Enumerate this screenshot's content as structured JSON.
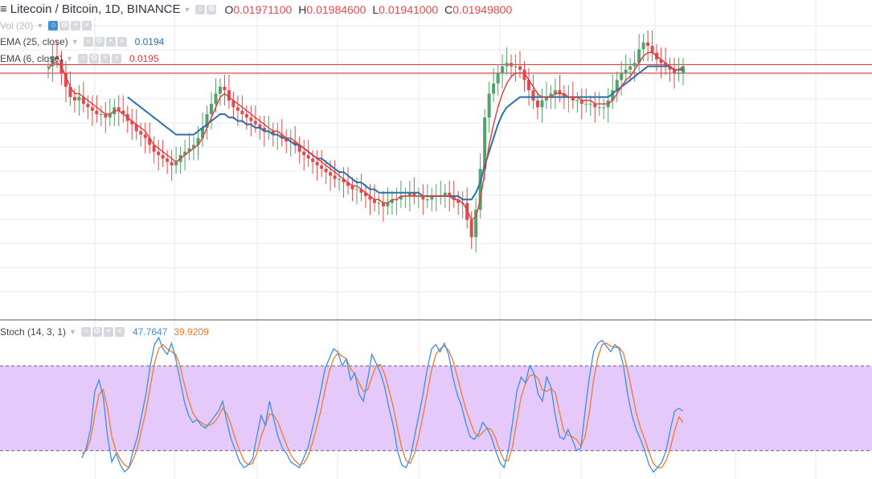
{
  "header": {
    "symbol_label": "Litecoin / Bitcoin, 1D, BINANCE",
    "ohlc": [
      {
        "key": "O",
        "value": "0.01971100"
      },
      {
        "key": "H",
        "value": "0.01984600"
      },
      {
        "key": "L",
        "value": "0.01941000"
      },
      {
        "key": "C",
        "value": "0.01949800"
      }
    ]
  },
  "indicators": {
    "vol": {
      "label": "Vol (20)"
    },
    "ema25": {
      "label": "EMA (25, close)",
      "value": "0.0194",
      "color": "#2f6ea8"
    },
    "ema6": {
      "label": "EMA (6, close)",
      "value": "0.0195",
      "color": "#e03b3b"
    }
  },
  "stoch": {
    "label": "Stoch (14, 3, 1)",
    "k_value": "47.7647",
    "d_value": "39.9209",
    "k_color": "#3a8ee6",
    "d_color": "#f07a2a",
    "band_color": "#e6c9fb",
    "upper_level": 80,
    "lower_level": 20
  },
  "colors": {
    "up": "#52a36b",
    "down": "#e24b4b",
    "grid": "#e6eaf0",
    "hline": "#c62828"
  },
  "chart_data": [
    {
      "type": "candlestick",
      "title": "Litecoin / Bitcoin, 1D, BINANCE",
      "y_range_estimate": [
        0.0125,
        0.0205
      ],
      "horizontal_lines": [
        0.01955,
        0.0193
      ],
      "close": [
        0.0195,
        0.0198,
        0.0197,
        0.0193,
        0.0189,
        0.0186,
        0.0185,
        0.0186,
        0.0184,
        0.0183,
        0.0182,
        0.0181,
        0.0181,
        0.018,
        0.0181,
        0.0183,
        0.0182,
        0.0181,
        0.0179,
        0.0178,
        0.0176,
        0.0175,
        0.0174,
        0.0172,
        0.017,
        0.0169,
        0.0168,
        0.0167,
        0.0166,
        0.0167,
        0.0169,
        0.017,
        0.0171,
        0.0172,
        0.0174,
        0.0177,
        0.0181,
        0.0184,
        0.0187,
        0.0189,
        0.0188,
        0.0185,
        0.0183,
        0.0182,
        0.0181,
        0.018,
        0.0179,
        0.0178,
        0.0177,
        0.0176,
        0.0176,
        0.0175,
        0.0175,
        0.0174,
        0.0173,
        0.0173,
        0.0172,
        0.017,
        0.0169,
        0.0168,
        0.0167,
        0.0166,
        0.0165,
        0.0164,
        0.0163,
        0.0162,
        0.0162,
        0.0161,
        0.016,
        0.0159,
        0.0159,
        0.0158,
        0.0157,
        0.0156,
        0.0155,
        0.0155,
        0.0154,
        0.0155,
        0.0156,
        0.0156,
        0.0157,
        0.0157,
        0.0158,
        0.0157,
        0.0157,
        0.0156,
        0.0156,
        0.0157,
        0.0157,
        0.0157,
        0.0158,
        0.0157,
        0.0156,
        0.0155,
        0.0155,
        0.015,
        0.0145,
        0.0153,
        0.0165,
        0.018,
        0.0187,
        0.019,
        0.0193,
        0.0195,
        0.0196,
        0.0195,
        0.0195,
        0.0194,
        0.0191,
        0.0188,
        0.0185,
        0.0183,
        0.0185,
        0.0186,
        0.0187,
        0.0188,
        0.0187,
        0.0186,
        0.0186,
        0.0185,
        0.0185,
        0.0184,
        0.0184,
        0.0184,
        0.0183,
        0.0183,
        0.0183,
        0.0185,
        0.0188,
        0.0191,
        0.0193,
        0.0194,
        0.0195,
        0.0196,
        0.02,
        0.0202,
        0.0201,
        0.0199,
        0.0197,
        0.0196,
        0.0195,
        0.0194,
        0.0193,
        0.0193,
        0.0195
      ],
      "ema_25": [
        null,
        null,
        null,
        null,
        null,
        null,
        null,
        null,
        null,
        null,
        null,
        null,
        null,
        null,
        null,
        null,
        null,
        null,
        0.0186,
        0.0185,
        0.0184,
        0.0183,
        0.0182,
        0.0181,
        0.018,
        0.0179,
        0.0178,
        0.0177,
        0.0176,
        0.0175,
        0.0175,
        0.0175,
        0.0175,
        0.0175,
        0.0176,
        0.0177,
        0.0178,
        0.0179,
        0.018,
        0.0181,
        0.0181,
        0.018,
        0.018,
        0.0179,
        0.0179,
        0.0178,
        0.0178,
        0.0177,
        0.0177,
        0.0176,
        0.0176,
        0.0175,
        0.0175,
        0.0174,
        0.0174,
        0.0173,
        0.0172,
        0.0172,
        0.0171,
        0.017,
        0.0169,
        0.0168,
        0.0168,
        0.0167,
        0.0166,
        0.0165,
        0.0164,
        0.0164,
        0.0163,
        0.0162,
        0.0161,
        0.0161,
        0.016,
        0.0159,
        0.0159,
        0.0158,
        0.0158,
        0.0158,
        0.0158,
        0.0158,
        0.0158,
        0.0158,
        0.0158,
        0.0158,
        0.0158,
        0.0157,
        0.0157,
        0.0157,
        0.0157,
        0.0157,
        0.0157,
        0.0157,
        0.0157,
        0.0157,
        0.0156,
        0.0156,
        0.0156,
        0.0158,
        0.0161,
        0.0166,
        0.017,
        0.0174,
        0.0178,
        0.0181,
        0.0183,
        0.0184,
        0.0185,
        0.0186,
        0.0186,
        0.0186,
        0.0186,
        0.0186,
        0.0186,
        0.0186,
        0.0186,
        0.0186,
        0.0186,
        0.0186,
        0.0186,
        0.0186,
        0.0186,
        0.0186,
        0.0186,
        0.0186,
        0.0186,
        0.0186,
        0.0186,
        0.0186,
        0.0187,
        0.0188,
        0.0189,
        0.019,
        0.0191,
        0.0192,
        0.0193,
        0.0194,
        0.0195,
        0.0195,
        0.0195,
        0.0195,
        0.0195,
        0.0195,
        0.0194,
        0.0194,
        0.0194
      ],
      "ema_6": [
        0.0194,
        0.0196,
        0.0196,
        0.0195,
        0.0192,
        0.0189,
        0.0187,
        0.0187,
        0.0186,
        0.0185,
        0.0184,
        0.0183,
        0.0182,
        0.0181,
        0.0181,
        0.0182,
        0.0182,
        0.0181,
        0.018,
        0.0179,
        0.0178,
        0.0177,
        0.0176,
        0.0174,
        0.0172,
        0.0171,
        0.017,
        0.0169,
        0.0168,
        0.0167,
        0.0168,
        0.0169,
        0.017,
        0.0171,
        0.0172,
        0.0174,
        0.0177,
        0.018,
        0.0183,
        0.0186,
        0.0187,
        0.0186,
        0.0185,
        0.0184,
        0.0183,
        0.0182,
        0.0181,
        0.018,
        0.0179,
        0.0178,
        0.0177,
        0.0176,
        0.0176,
        0.0175,
        0.0174,
        0.0174,
        0.0173,
        0.0172,
        0.0171,
        0.017,
        0.0169,
        0.0168,
        0.0167,
        0.0166,
        0.0165,
        0.0164,
        0.0163,
        0.0162,
        0.0161,
        0.016,
        0.016,
        0.0159,
        0.0158,
        0.0157,
        0.0156,
        0.0156,
        0.0155,
        0.0155,
        0.0156,
        0.0156,
        0.0157,
        0.0157,
        0.0157,
        0.0157,
        0.0157,
        0.0157,
        0.0157,
        0.0157,
        0.0157,
        0.0157,
        0.0157,
        0.0157,
        0.0156,
        0.0156,
        0.0155,
        0.0153,
        0.015,
        0.0151,
        0.0156,
        0.0164,
        0.0172,
        0.0178,
        0.0183,
        0.0187,
        0.019,
        0.0192,
        0.0193,
        0.0193,
        0.0193,
        0.0191,
        0.0189,
        0.0187,
        0.0186,
        0.0186,
        0.0186,
        0.0187,
        0.0187,
        0.0187,
        0.0186,
        0.0186,
        0.0186,
        0.0185,
        0.0185,
        0.0185,
        0.0184,
        0.0184,
        0.0184,
        0.0184,
        0.0185,
        0.0187,
        0.0189,
        0.0191,
        0.0192,
        0.0194,
        0.0196,
        0.0198,
        0.0199,
        0.0199,
        0.0198,
        0.0197,
        0.0196,
        0.0195,
        0.0194,
        0.0194,
        0.0195
      ]
    },
    {
      "type": "line",
      "title": "Stoch (14, 3, 1)",
      "ylim": [
        0,
        100
      ],
      "series": [
        {
          "name": "%K",
          "values": [
            15,
            22,
            35,
            62,
            70,
            58,
            30,
            12,
            18,
            10,
            5,
            8,
            20,
            30,
            45,
            60,
            80,
            95,
            100,
            92,
            88,
            96,
            85,
            70,
            55,
            45,
            40,
            42,
            38,
            36,
            40,
            44,
            48,
            55,
            40,
            28,
            20,
            12,
            8,
            10,
            14,
            30,
            45,
            38,
            55,
            42,
            30,
            22,
            18,
            12,
            10,
            8,
            15,
            22,
            35,
            48,
            62,
            78,
            85,
            92,
            90,
            80,
            85,
            70,
            75,
            60,
            55,
            70,
            88,
            82,
            75,
            65,
            50,
            38,
            20,
            10,
            8,
            15,
            30,
            45,
            60,
            78,
            92,
            95,
            90,
            96,
            88,
            72,
            60,
            52,
            40,
            30,
            28,
            32,
            40,
            36,
            30,
            20,
            12,
            8,
            20,
            40,
            62,
            72,
            68,
            80,
            75,
            60,
            55,
            72,
            65,
            45,
            30,
            28,
            35,
            28,
            20,
            22,
            48,
            72,
            90,
            96,
            98,
            94,
            90,
            95,
            92,
            80,
            60,
            45,
            35,
            28,
            20,
            10,
            5,
            8,
            12,
            20,
            35,
            48,
            50,
            48
          ]
        },
        {
          "name": "%D",
          "values": [
            18,
            20,
            28,
            45,
            60,
            63,
            50,
            30,
            20,
            14,
            10,
            8,
            14,
            22,
            35,
            48,
            65,
            82,
            92,
            95,
            92,
            90,
            88,
            80,
            67,
            56,
            47,
            42,
            40,
            38,
            38,
            40,
            44,
            50,
            46,
            38,
            28,
            20,
            13,
            10,
            11,
            18,
            30,
            38,
            46,
            45,
            40,
            32,
            24,
            17,
            13,
            10,
            11,
            16,
            25,
            36,
            48,
            63,
            76,
            85,
            89,
            87,
            85,
            78,
            74,
            68,
            62,
            63,
            72,
            80,
            81,
            74,
            63,
            51,
            36,
            22,
            13,
            11,
            18,
            30,
            45,
            61,
            77,
            88,
            92,
            94,
            91,
            84,
            73,
            61,
            50,
            41,
            33,
            30,
            33,
            36,
            35,
            29,
            20,
            13,
            13,
            23,
            41,
            58,
            67,
            73,
            74,
            71,
            63,
            62,
            64,
            61,
            47,
            34,
            31,
            30,
            28,
            23,
            30,
            47,
            70,
            86,
            95,
            96,
            94,
            93,
            93,
            89,
            77,
            62,
            47,
            36,
            28,
            19,
            11,
            8,
            8,
            13,
            22,
            34,
            44,
            40
          ]
        }
      ]
    }
  ]
}
